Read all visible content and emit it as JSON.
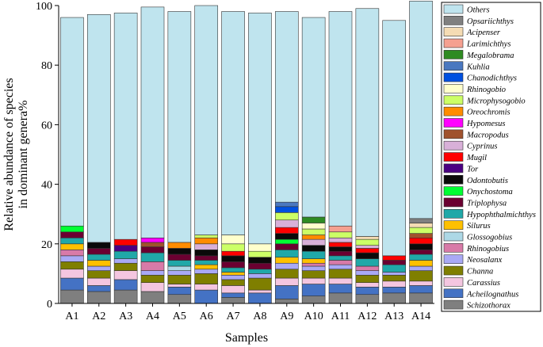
{
  "chart_data": {
    "type": "bar",
    "stacked": true,
    "xlabel": "Samples",
    "ylabel_line1": "Relative abundance of species",
    "ylabel_line2": "in dominant genera%",
    "ylim": [
      0,
      100
    ],
    "yticks": [
      "0",
      "20",
      "40",
      "60",
      "80",
      "100"
    ],
    "grid": false,
    "legend_position": "right",
    "categories": [
      "A1",
      "A2",
      "A3",
      "A4",
      "A5",
      "A6",
      "A7",
      "A8",
      "A9",
      "A10",
      "A11",
      "A12",
      "A13",
      "A14"
    ],
    "series": [
      {
        "name": "Schizothorax",
        "color": "#7f7f7f",
        "values": [
          4.5,
          4.0,
          4.5,
          4.0,
          3.0,
          0,
          2.0,
          0,
          1.5,
          2.5,
          3.5,
          3.0,
          3.5,
          3.5
        ]
      },
      {
        "name": "Acheilognathus",
        "color": "#4472c4",
        "values": [
          4.0,
          2.0,
          3.5,
          0,
          2.5,
          4.5,
          1.5,
          3.5,
          4.5,
          4.0,
          3.0,
          2.5,
          2.0,
          2.5
        ]
      },
      {
        "name": "Carassius",
        "color": "#f4c6e0",
        "values": [
          3.0,
          2.5,
          3.0,
          3.0,
          1.0,
          2.0,
          2.5,
          1.0,
          2.5,
          2.0,
          2.0,
          1.5,
          2.0,
          1.5
        ]
      },
      {
        "name": "Channa",
        "color": "#7f7f00",
        "values": [
          2.5,
          2.5,
          2.5,
          2.5,
          3.0,
          3.5,
          2.0,
          4.0,
          3.0,
          2.5,
          3.0,
          2.5,
          2.0,
          3.5
        ]
      },
      {
        "name": "Neosalanx",
        "color": "#a9a9f5",
        "values": [
          2.0,
          1.5,
          1.5,
          1.5,
          1.5,
          1.5,
          1.5,
          1.5,
          2.0,
          1.5,
          1.5,
          1.5,
          1.0,
          1.5
        ]
      },
      {
        "name": "Rhinogobius",
        "color": "#d87aa8",
        "values": [
          2.0,
          0,
          0,
          3.0,
          0,
          0,
          0,
          0,
          0,
          1.0,
          1.5,
          1.5,
          0,
          0
        ]
      },
      {
        "name": "Glossogobius",
        "color": "#add8e6",
        "values": [
          0,
          0,
          0,
          0,
          1.5,
          0,
          0,
          0,
          0,
          0,
          0,
          0,
          0,
          0
        ]
      },
      {
        "name": "Silurus",
        "color": "#ffc000",
        "values": [
          2.0,
          2.0,
          0,
          0,
          0,
          1.5,
          1.0,
          0,
          2.0,
          1.5,
          0,
          0,
          0,
          2.0
        ]
      },
      {
        "name": "Hypophthalmichthys",
        "color": "#20a8a8",
        "values": [
          2.0,
          2.0,
          2.5,
          3.0,
          2.0,
          1.5,
          1.5,
          1.5,
          2.5,
          2.5,
          1.5,
          2.5,
          2.5,
          2.0
        ]
      },
      {
        "name": "Triplophysa",
        "color": "#6b0031",
        "values": [
          2.0,
          2.0,
          0,
          2.0,
          2.0,
          1.5,
          2.0,
          2.0,
          2.0,
          0,
          1.5,
          0,
          1.5,
          1.5
        ]
      },
      {
        "name": "Onychostoma",
        "color": "#00ff33",
        "values": [
          2.0,
          0,
          0,
          0,
          0,
          0,
          0,
          0,
          1.5,
          0,
          0,
          0,
          0,
          0
        ]
      },
      {
        "name": "Odontobutis",
        "color": "#0a0a0a",
        "values": [
          0,
          2.0,
          0,
          0,
          2.0,
          2.0,
          2.0,
          2.0,
          2.0,
          2.0,
          1.5,
          2.0,
          0,
          2.0
        ]
      },
      {
        "name": "Tor",
        "color": "#4b0082",
        "values": [
          0,
          0,
          2.0,
          0,
          0,
          0,
          0,
          0,
          0,
          0,
          0,
          0,
          0,
          0
        ]
      },
      {
        "name": "Mugil",
        "color": "#ff0000",
        "values": [
          0,
          0,
          2.0,
          0,
          0,
          0,
          1.5,
          0,
          2.0,
          0,
          1.5,
          1.5,
          1.5,
          2.0
        ]
      },
      {
        "name": "Cyprinus",
        "color": "#d8b0d8",
        "values": [
          0,
          0,
          0,
          0,
          0,
          2.0,
          0,
          0,
          2.5,
          2.0,
          1.5,
          1.0,
          0,
          0
        ]
      },
      {
        "name": "Macropodus",
        "color": "#a0522d",
        "values": [
          0,
          0,
          0,
          1.5,
          0,
          0,
          0,
          0,
          0,
          0,
          0,
          0,
          0,
          1.5
        ]
      },
      {
        "name": "Hypomesus",
        "color": "#ff00ff",
        "values": [
          0,
          0,
          0,
          1.5,
          0,
          0,
          0,
          0,
          0,
          0,
          0,
          0,
          0,
          0
        ]
      },
      {
        "name": "Oreochromis",
        "color": "#ff8c00",
        "values": [
          0,
          0,
          0,
          0,
          2.0,
          2.0,
          0,
          0,
          0,
          1.5,
          0,
          0,
          0,
          0
        ]
      },
      {
        "name": "Microphysogobio",
        "color": "#ccff66",
        "values": [
          0,
          0,
          0,
          0,
          0,
          1.0,
          2.5,
          2.0,
          2.5,
          2.0,
          2.0,
          2.0,
          0,
          2.0
        ]
      },
      {
        "name": "Rhinogobio",
        "color": "#ffffcc",
        "values": [
          0,
          0,
          0,
          0,
          0,
          0,
          3.0,
          2.5,
          0,
          2.0,
          0,
          0,
          0,
          0
        ]
      },
      {
        "name": "Chanodichthys",
        "color": "#0050e0",
        "values": [
          0,
          0,
          0,
          0,
          0,
          0,
          0,
          0,
          2.0,
          0,
          0,
          0,
          0,
          0
        ]
      },
      {
        "name": "Kuhlia",
        "color": "#4a78c0",
        "values": [
          0,
          0,
          0,
          0,
          0,
          0,
          0,
          0,
          1.5,
          0,
          0,
          0,
          0,
          0
        ]
      },
      {
        "name": "Megalobrama",
        "color": "#2e8b22",
        "values": [
          0,
          0,
          0,
          0,
          0,
          0,
          0,
          0,
          0,
          2.0,
          0,
          0,
          0,
          0
        ]
      },
      {
        "name": "Larimichthys",
        "color": "#f5a090",
        "values": [
          0,
          0,
          0,
          0,
          0,
          0,
          0,
          0,
          0,
          0,
          2.0,
          0,
          0,
          0
        ]
      },
      {
        "name": "Acipenser",
        "color": "#f5dcb4",
        "values": [
          0,
          0,
          0,
          0,
          0,
          0,
          0,
          0,
          0,
          0,
          0,
          1.0,
          0,
          1.5
        ]
      },
      {
        "name": "Opsariichthys",
        "color": "#808080",
        "values": [
          0,
          0,
          0,
          0,
          0,
          0,
          0,
          0,
          0,
          0,
          0,
          0,
          0,
          1.5
        ]
      },
      {
        "name": "Others",
        "color": "#bfe4ee",
        "values": [
          70.0,
          76.5,
          76.0,
          77.5,
          77.5,
          77.0,
          75.0,
          77.5,
          64.0,
          67.0,
          72.0,
          76.5,
          79.0,
          73.0
        ]
      }
    ]
  }
}
